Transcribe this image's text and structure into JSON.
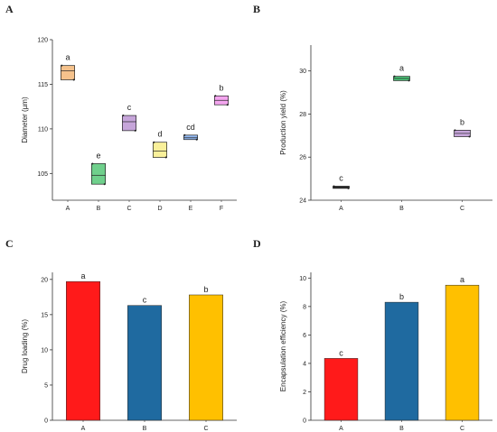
{
  "chart_data": [
    {
      "panel": "A",
      "type": "box",
      "ylabel": "Diameter (µm)",
      "ylim": [
        102,
        120
      ],
      "yticks": [
        105,
        110,
        115,
        120
      ],
      "categories": [
        "A",
        "B",
        "C",
        "D",
        "E",
        "F"
      ],
      "boxes": [
        {
          "q1": 115.5,
          "median": 116.5,
          "q3": 117.1,
          "min": 115.5,
          "max": 117.1,
          "color": "#f5c28c",
          "letter": "a"
        },
        {
          "q1": 103.8,
          "median": 104.8,
          "q3": 106.1,
          "min": 103.8,
          "max": 106.1,
          "color": "#6fd08c",
          "letter": "e"
        },
        {
          "q1": 109.8,
          "median": 110.8,
          "q3": 111.5,
          "min": 109.8,
          "max": 111.5,
          "color": "#c6a5da",
          "letter": "c"
        },
        {
          "q1": 106.8,
          "median": 107.5,
          "q3": 108.5,
          "min": 106.8,
          "max": 108.5,
          "color": "#f9f09a",
          "letter": "d"
        },
        {
          "q1": 108.8,
          "median": 109.0,
          "q3": 109.3,
          "min": 108.8,
          "max": 109.3,
          "color": "#92b8ef",
          "letter": "cd"
        },
        {
          "q1": 112.7,
          "median": 113.2,
          "q3": 113.7,
          "min": 112.7,
          "max": 113.7,
          "color": "#f4a5ef",
          "letter": "b"
        }
      ]
    },
    {
      "panel": "B",
      "type": "box",
      "ylabel": "Production yield (%)",
      "ylim": [
        24,
        31.2
      ],
      "yticks": [
        24,
        26,
        28,
        30
      ],
      "categories": [
        "A",
        "B",
        "C"
      ],
      "boxes": [
        {
          "q1": 24.55,
          "median": 24.6,
          "q3": 24.65,
          "min": 24.55,
          "max": 24.65,
          "color": "#333333",
          "letter": "c"
        },
        {
          "q1": 29.55,
          "median": 29.65,
          "q3": 29.75,
          "min": 29.55,
          "max": 29.75,
          "color": "#4cc87a",
          "letter": "a"
        },
        {
          "q1": 26.95,
          "median": 27.1,
          "q3": 27.25,
          "min": 26.95,
          "max": 27.25,
          "color": "#c6a5da",
          "letter": "b"
        }
      ]
    },
    {
      "panel": "C",
      "type": "bar",
      "ylabel": "Drug loading (%)",
      "ylim": [
        0,
        21
      ],
      "yticks": [
        0,
        5,
        10,
        15,
        20
      ],
      "categories": [
        "A",
        "B",
        "C"
      ],
      "values": [
        19.7,
        16.3,
        17.8
      ],
      "colors": [
        "#ff1a1a",
        "#1f6aa0",
        "#ffc000"
      ],
      "letters": [
        "a",
        "c",
        "b"
      ]
    },
    {
      "panel": "D",
      "type": "bar",
      "ylabel": "Encapsulation efficiency (%)",
      "ylim": [
        0,
        10.4
      ],
      "yticks": [
        0,
        2,
        4,
        6,
        8,
        10
      ],
      "categories": [
        "A",
        "B",
        "C"
      ],
      "values": [
        4.35,
        8.3,
        9.5
      ],
      "colors": [
        "#ff1a1a",
        "#1f6aa0",
        "#ffc000"
      ],
      "letters": [
        "c",
        "b",
        "a"
      ]
    }
  ]
}
